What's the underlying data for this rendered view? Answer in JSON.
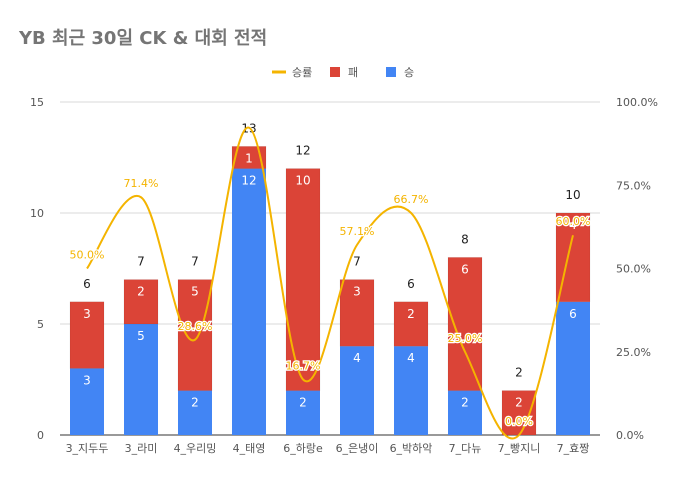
{
  "chart_data": {
    "type": "bar",
    "title": "YB 최근 30일 CK & 대회 전적",
    "categories": [
      "3_지두두",
      "3_라미",
      "4_우리밍",
      "4_태영",
      "6_하랑e",
      "6_은냉이",
      "6_박하악",
      "7_다뉴",
      "7_빵지니",
      "7_효짱"
    ],
    "series": [
      {
        "name": "승",
        "color": "#4285f4",
        "values": [
          3,
          5,
          2,
          12,
          2,
          4,
          4,
          2,
          0,
          6
        ],
        "labels": [
          "3",
          "5",
          "2",
          "12",
          "2",
          "4",
          "4",
          "2",
          "0",
          "6"
        ]
      },
      {
        "name": "패",
        "color": "#db4437",
        "values": [
          3,
          2,
          5,
          1,
          10,
          3,
          2,
          6,
          2,
          4
        ],
        "labels": [
          "3",
          "2",
          "5",
          "1",
          "10",
          "3",
          "2",
          "6",
          "2",
          "4"
        ]
      }
    ],
    "totals": [
      "6",
      "7",
      "7",
      "13",
      "12",
      "7",
      "6",
      "8",
      "2",
      "10"
    ],
    "line": {
      "name": "승률",
      "color": "#f4b400",
      "values": [
        50.0,
        71.4,
        28.6,
        92.3,
        16.7,
        57.1,
        66.7,
        25.0,
        0.0,
        60.0
      ],
      "labels": [
        "50.0%",
        "71.4%",
        "28.6%",
        "",
        "16.7%",
        "57.1%",
        "66.7%",
        "25.0%",
        "0.0%",
        "60.0%"
      ]
    },
    "legend": [
      {
        "name": "승률",
        "color": "#f4b400",
        "kind": "line"
      },
      {
        "name": "패",
        "color": "#db4437",
        "kind": "box"
      },
      {
        "name": "승",
        "color": "#4285f4",
        "kind": "box"
      }
    ],
    "y_left": {
      "min": 0,
      "max": 15,
      "ticks": [
        0,
        5,
        10,
        15
      ],
      "tick_labels": [
        "0",
        "5",
        "10",
        "15"
      ]
    },
    "y_right": {
      "min": 0,
      "max": 100,
      "ticks": [
        0,
        25,
        50,
        75,
        100
      ],
      "tick_labels": [
        "0.0%",
        "25.0%",
        "50.0%",
        "75.0%",
        "100.0%"
      ]
    },
    "grid": true,
    "legend_position": "top-center"
  }
}
